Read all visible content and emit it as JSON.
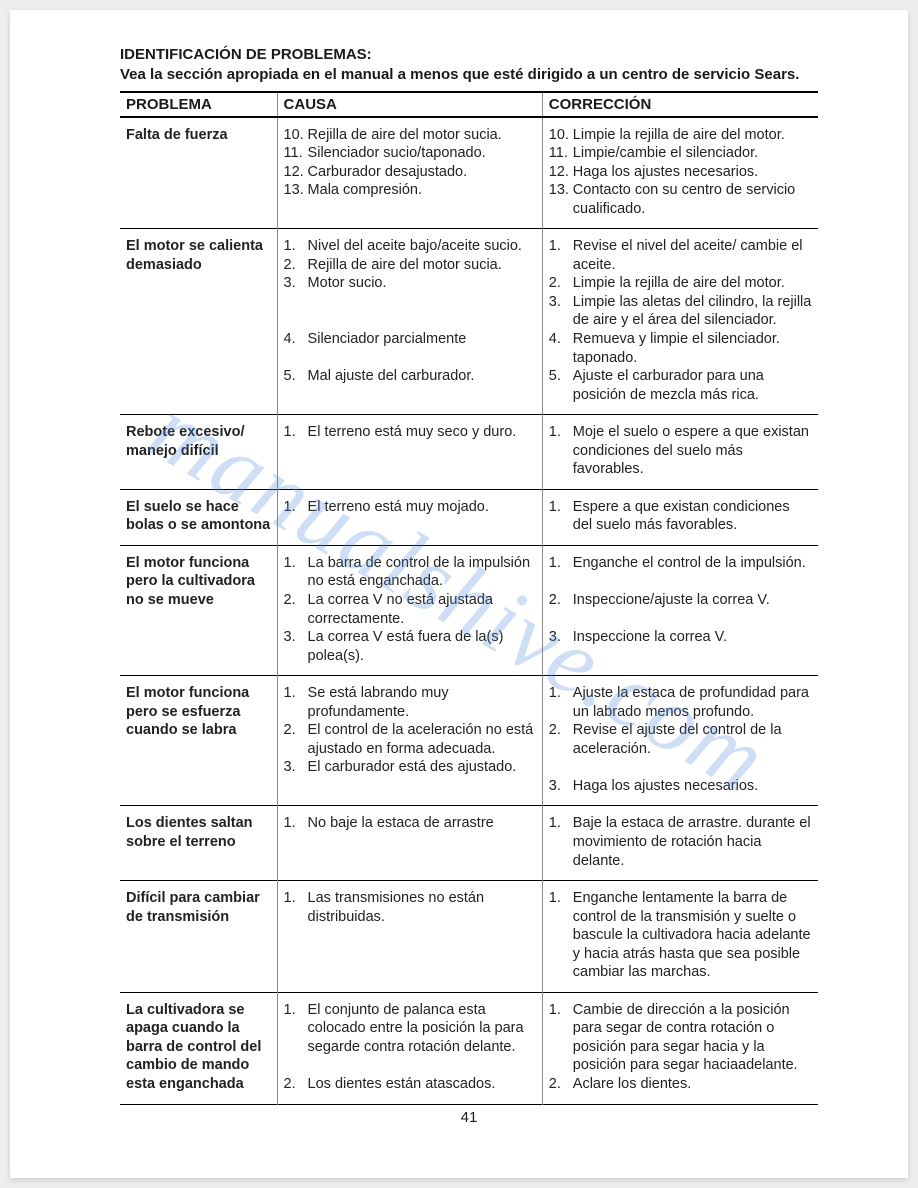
{
  "watermark_text": "manualshive.com",
  "title": "IDENTIFICACIÓN DE PROBLEMAS:",
  "subtitle": "Vea la sección apropiada en el manual a menos que esté dirigido a un centro de servicio Sears.",
  "headers": {
    "problem": "PROBLEMA",
    "cause": "CAUSA",
    "correction": "CORRECCIÓN"
  },
  "page_number": "41",
  "rows": [
    {
      "problem": "Falta de fuerza",
      "causes": [
        {
          "n": "10.",
          "t": "Rejilla de aire del motor sucia."
        },
        {
          "n": "11.",
          "t": "Silenciador sucio/taponado."
        },
        {
          "n": "12.",
          "t": "Carburador desajustado."
        },
        {
          "n": "13.",
          "t": "Mala compresión."
        }
      ],
      "fixes": [
        {
          "n": "10.",
          "t": "Limpie la rejilla de aire del  motor."
        },
        {
          "n": "11.",
          "t": "Limpie/cambie el silenciador."
        },
        {
          "n": "12.",
          "t": "Haga los ajustes necesarios."
        },
        {
          "n": "13.",
          "t": "Contacto con su centro de servicio cualificado."
        }
      ]
    },
    {
      "problem": "El motor se calienta demasiado",
      "causes": [
        {
          "n": "1.",
          "t": "Nivel del aceite bajo/aceite sucio."
        },
        {
          "n": "2.",
          "t": "Rejilla de aire del motor sucia."
        },
        {
          "n": "3.",
          "t": "Motor sucio."
        },
        {
          "n": "",
          "t": " ",
          "gap": true
        },
        {
          "n": "",
          "t": " ",
          "gap": true
        },
        {
          "n": "4.",
          "t": " Silenciador parcialmente"
        },
        {
          "n": "",
          "t": " ",
          "gap": true
        },
        {
          "n": "5.",
          "t": "Mal ajuste del carburador."
        }
      ],
      "fixes": [
        {
          "n": "1.",
          "t": "Revise el nivel del aceite/ cambie el aceite."
        },
        {
          "n": "2.",
          "t": "Limpie la rejilla de aire del motor."
        },
        {
          "n": "3.",
          "t": "Limpie las aletas del cilindro, la rejilla de aire y el área del silenciador."
        },
        {
          "n": "4.",
          "t": "Remueva y limpie el silenciador. taponado."
        },
        {
          "n": "5.",
          "t": "Ajuste el carburador para una posición de mezcla más rica."
        }
      ]
    },
    {
      "problem": "Rebote excesivo/ manejo difícil",
      "causes": [
        {
          "n": "1.",
          "t": "El terreno está muy seco y duro."
        }
      ],
      "fixes": [
        {
          "n": "1.",
          "t": "Moje el suelo o espere a que existan condiciones del suelo más favorables."
        }
      ]
    },
    {
      "problem": "El suelo se hace bolas o se amontona",
      "causes": [
        {
          "n": "1.",
          "t": "El terreno está muy mojado."
        }
      ],
      "fixes": [
        {
          "n": "1.",
          "t": "Espere a que existan condiciones del suelo más favorables."
        }
      ]
    },
    {
      "problem": "El motor funciona pero la cultivadora no se mueve",
      "causes": [
        {
          "n": "1.",
          "t": "La barra de control de la impulsión no está enganchada."
        },
        {
          "n": "2.",
          "t": "La correa V no está ajustada correctamente."
        },
        {
          "n": "3.",
          "t": "La correa V está fuera de la(s) polea(s)."
        }
      ],
      "fixes": [
        {
          "n": "1.",
          "t": "Enganche el control de la impulsión."
        },
        {
          "n": "",
          "t": " ",
          "gap": true
        },
        {
          "n": "2.",
          "t": "Inspeccione/ajuste la correa V."
        },
        {
          "n": "",
          "t": " ",
          "gap": true
        },
        {
          "n": "3.",
          "t": " Inspeccione la correa V."
        }
      ]
    },
    {
      "problem": "El motor funciona pero se esfuerza cuando se labra",
      "causes": [
        {
          "n": "1.",
          "t": "Se está labrando muy profundamente."
        },
        {
          "n": "2.",
          "t": "El control de la aceleración no está ajustado en forma adecuada."
        },
        {
          "n": "3.",
          "t": "El carburador está des ajustado."
        }
      ],
      "fixes": [
        {
          "n": "1.",
          "t": "Ajuste la estaca de profundidad para un labrado menos profundo."
        },
        {
          "n": "2.",
          "t": "Revise el ajuste del control de la aceleración."
        },
        {
          "n": "",
          "t": " ",
          "gap": true
        },
        {
          "n": "3.",
          "t": "Haga los ajustes necesarios."
        }
      ]
    },
    {
      "problem": "Los dientes saltan sobre el terreno",
      "causes": [
        {
          "n": "1.",
          "t": "No baje la estaca de arrastre"
        }
      ],
      "fixes": [
        {
          "n": "1.",
          "t": "Baje la estaca de arrastre. durante el movimiento de rotación hacia delante."
        }
      ]
    },
    {
      "problem": "Difícil para cambiar de transmisión",
      "causes": [
        {
          "n": "1.",
          "t": "Las transmisiones no están distribuidas."
        }
      ],
      "fixes": [
        {
          "n": "1.",
          "t": "Enganche lentamente la barra de control de la transmisión y suelte o bascule la cultivadora hacia adelante y hacia atrás hasta que sea posible cambiar las marchas."
        }
      ]
    },
    {
      "problem": "La cultivadora se apaga cuando la barra de control del cambio de mando esta enganchada",
      "causes": [
        {
          "n": "1.",
          "t": "El conjunto de palanca esta colocado entre la posición la para segarde contra rotación delante."
        },
        {
          "n": "",
          "t": " ",
          "gap": true
        },
        {
          "n": "2.",
          "t": "Los dientes están atascados."
        }
      ],
      "fixes": [
        {
          "n": "1.",
          "t": "Cambie de dirección a la posición para segar de contra rotación o posición para segar hacia y la posición para segar haciaadelante."
        },
        {
          "n": "2.",
          "t": "Aclare los dientes."
        }
      ]
    }
  ]
}
